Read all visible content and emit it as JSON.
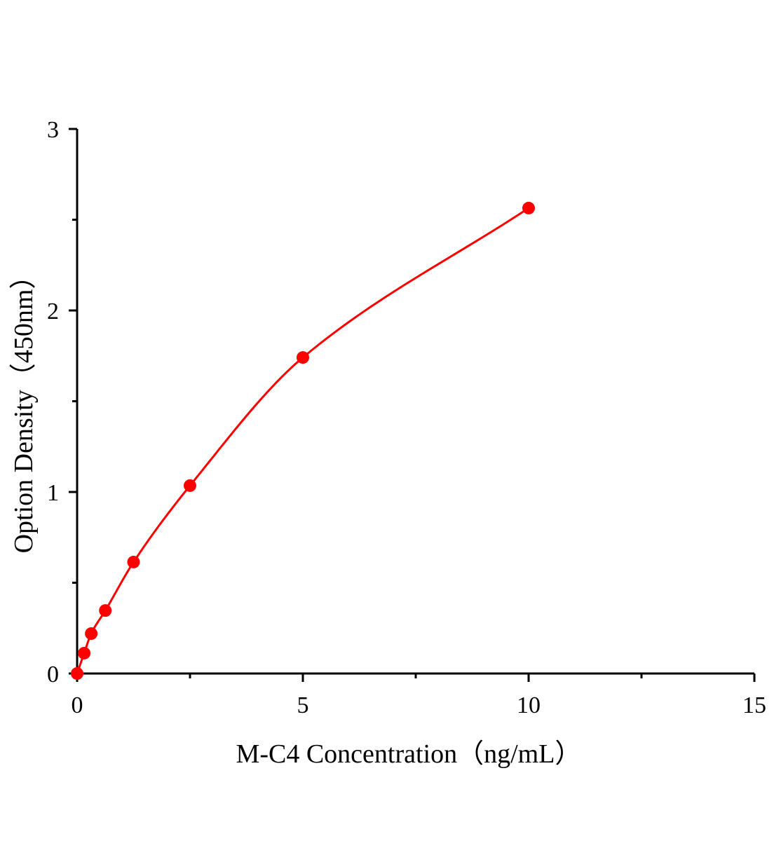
{
  "chart_data": {
    "type": "scatter",
    "title": "",
    "xlabel": "M-C4 Concentration（ng/mL）",
    "ylabel": "Option Density（450nm）",
    "xlim": [
      0,
      15
    ],
    "ylim": [
      0,
      3
    ],
    "xticks": [
      "0",
      "5",
      "10",
      "15"
    ],
    "yticks": [
      "0",
      "1",
      "2",
      "3"
    ],
    "grid": false,
    "fit_curve": true,
    "color": "#ff0000",
    "series": [
      {
        "x": [
          0,
          0.156,
          0.3125,
          0.625,
          1.25,
          2.5,
          5,
          10
        ],
        "y": [
          0,
          0.112,
          0.22,
          0.347,
          0.614,
          1.035,
          1.741,
          2.564
        ]
      }
    ]
  }
}
